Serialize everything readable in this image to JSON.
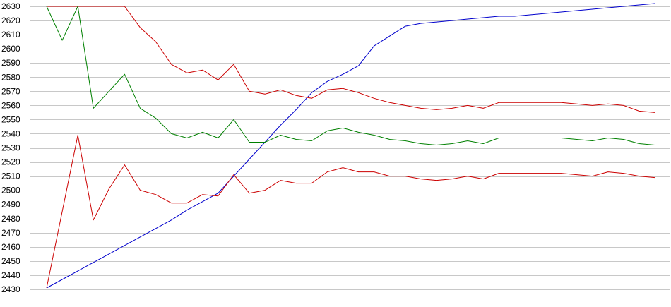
{
  "chart_data": {
    "type": "line",
    "title": "",
    "xlabel": "",
    "ylabel": "",
    "ylim": [
      2430,
      2630
    ],
    "yticks": [
      2430,
      2440,
      2450,
      2460,
      2470,
      2480,
      2490,
      2500,
      2510,
      2520,
      2530,
      2540,
      2550,
      2560,
      2570,
      2580,
      2590,
      2600,
      2610,
      2620,
      2630
    ],
    "grid": "horizontal",
    "legend": "none",
    "x": [
      1,
      2,
      3,
      4,
      5,
      6,
      7,
      8,
      9,
      10,
      11,
      12,
      13,
      14,
      15,
      16,
      17,
      18,
      19,
      20,
      21,
      22,
      23,
      24,
      25,
      26,
      27,
      28,
      29,
      30,
      31,
      32,
      33,
      34,
      35,
      36,
      37,
      38,
      39,
      40
    ],
    "series": [
      {
        "color": "#0000cc",
        "values": [
          2431,
          2437,
          2443,
          2449,
          2455,
          2461,
          2467,
          2473,
          2479,
          2486,
          2492,
          2498,
          2510,
          2522,
          2534,
          2546,
          2557,
          2569,
          2577,
          2582,
          2588,
          2602,
          2609,
          2616,
          2618,
          2619,
          2620,
          2621,
          2622,
          2623,
          2623,
          2624,
          2625,
          2626,
          2627,
          2628,
          2629,
          2630,
          2631,
          2632
        ]
      },
      {
        "color": "#cc0000",
        "values": [
          2630,
          2630,
          2630,
          2630,
          2630,
          2630,
          2615,
          2605,
          2589,
          2583,
          2585,
          2578,
          2589,
          2570,
          2568,
          2571,
          2567,
          2565,
          2571,
          2572,
          2569,
          2565,
          2562,
          2560,
          2558,
          2557,
          2558,
          2560,
          2558,
          2562,
          2562,
          2562,
          2562,
          2562,
          2561,
          2560,
          2561,
          2560,
          2556,
          2555
        ]
      },
      {
        "color": "#008000",
        "values": [
          2630,
          2606,
          2630,
          2558,
          2570,
          2582,
          2558,
          2551,
          2540,
          2537,
          2541,
          2537,
          2550,
          2534,
          2534,
          2539,
          2536,
          2535,
          2542,
          2544,
          2541,
          2539,
          2536,
          2535,
          2533,
          2532,
          2533,
          2535,
          2533,
          2537,
          2537,
          2537,
          2537,
          2537,
          2536,
          2535,
          2537,
          2536,
          2533,
          2532
        ]
      },
      {
        "color": "#cc0000",
        "values": [
          2431,
          2485,
          2539,
          2479,
          2501,
          2518,
          2500,
          2497,
          2491,
          2491,
          2497,
          2496,
          2511,
          2498,
          2500,
          2507,
          2505,
          2505,
          2513,
          2516,
          2513,
          2513,
          2510,
          2510,
          2508,
          2507,
          2508,
          2510,
          2508,
          2512,
          2512,
          2512,
          2512,
          2512,
          2511,
          2510,
          2513,
          2512,
          2510,
          2509
        ]
      }
    ]
  }
}
